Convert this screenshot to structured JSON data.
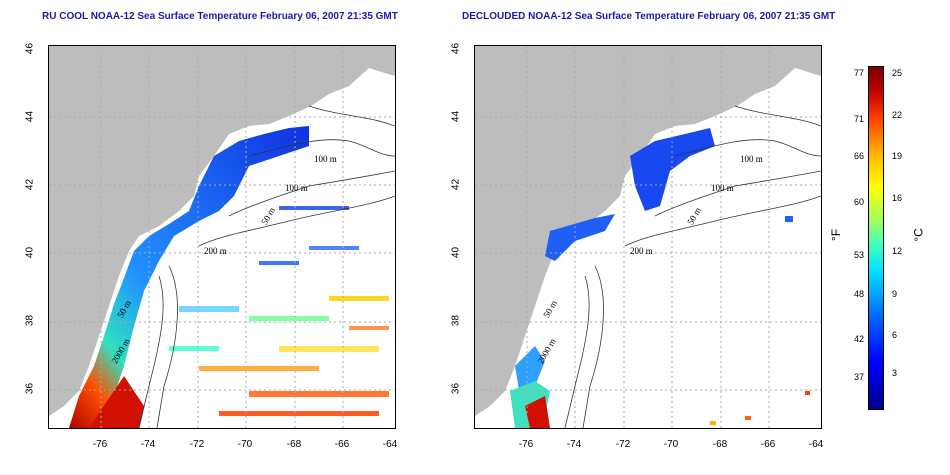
{
  "titles": {
    "left": "RU COOL NOAA-12 Sea Surface Temperature February 06, 2007 21:35 GMT",
    "right": "DECLOUDED NOAA-12 Sea Surface Temperature February 06, 2007 21:35 GMT"
  },
  "axes": {
    "x_ticks": [
      "-76",
      "-74",
      "-72",
      "-70",
      "-68",
      "-66",
      "-64"
    ],
    "y_ticks": [
      "46",
      "44",
      "42",
      "40",
      "38",
      "36"
    ]
  },
  "contour_labels": {
    "left": [
      "100 m",
      "100 m",
      "50 m",
      "200 m",
      "50 m",
      "2000 m"
    ],
    "right": [
      "100 m",
      "100 m",
      "50 m",
      "200 m",
      "50 m",
      "2000 m"
    ]
  },
  "colorbar": {
    "fahrenheit": [
      "77",
      "71",
      "66",
      "60",
      "53",
      "48",
      "42",
      "37"
    ],
    "celsius": [
      "25",
      "22",
      "19",
      "16",
      "12",
      "9",
      "6",
      "3"
    ],
    "unit_f": "°F",
    "unit_c": "°C"
  },
  "colors": {
    "land": "#bdbdbd",
    "title": "#1a1aa6",
    "grid": "#aaaaaa"
  }
}
